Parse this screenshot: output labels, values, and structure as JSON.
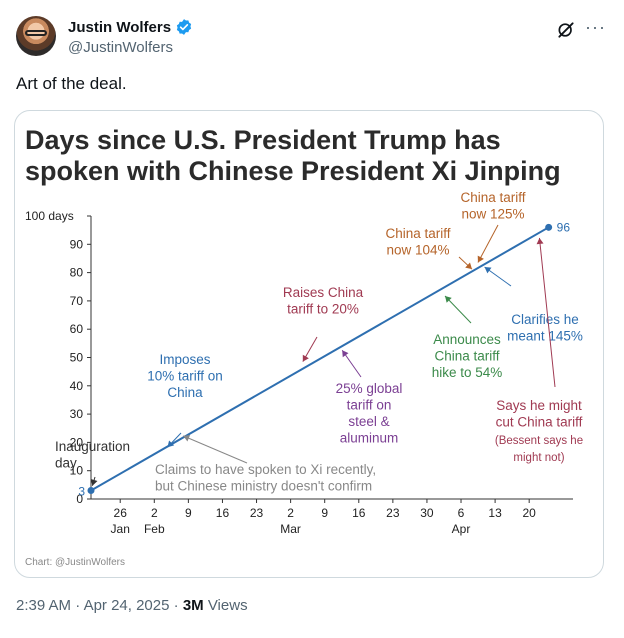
{
  "author": {
    "display_name": "Justin Wolfers",
    "handle": "@JustinWolfers",
    "verified_color": "#1d9bf0"
  },
  "icons": {
    "verified": "verified-badge-icon",
    "grok": "grok-icon",
    "more": "more-options-icon"
  },
  "tweet": {
    "text": "Art of the deal.",
    "time": "2:39 AM",
    "separator": "·",
    "date": "Apr 24, 2025",
    "views_count": "3M",
    "views_label": "Views"
  },
  "chart_data": {
    "type": "line",
    "title_lines": [
      "Days since U.S. President Trump has",
      "spoken with Chinese President Xi Jinping"
    ],
    "credit": "Chart: @JustinWolfers",
    "y_ticks": [
      {
        "value": 100,
        "label": "100 days"
      },
      {
        "value": 90,
        "label": "90"
      },
      {
        "value": 80,
        "label": "80"
      },
      {
        "value": 70,
        "label": "70"
      },
      {
        "value": 60,
        "label": "60"
      },
      {
        "value": 50,
        "label": "50"
      },
      {
        "value": 40,
        "label": "40"
      },
      {
        "value": 30,
        "label": "30"
      },
      {
        "value": 20,
        "label": "20"
      },
      {
        "value": 10,
        "label": "10"
      },
      {
        "value": 0,
        "label": "0"
      }
    ],
    "ylim": [
      0,
      100
    ],
    "xlim": [
      "2025-01-20",
      "2025-04-29"
    ],
    "x_ticks": [
      {
        "date": "2025-01-26",
        "label": "26",
        "month": "Jan"
      },
      {
        "date": "2025-02-02",
        "label": "2",
        "month": "Feb"
      },
      {
        "date": "2025-02-09",
        "label": "9",
        "month": ""
      },
      {
        "date": "2025-02-16",
        "label": "16",
        "month": ""
      },
      {
        "date": "2025-02-23",
        "label": "23",
        "month": ""
      },
      {
        "date": "2025-03-02",
        "label": "2",
        "month": "Mar"
      },
      {
        "date": "2025-03-09",
        "label": "9",
        "month": ""
      },
      {
        "date": "2025-03-16",
        "label": "16",
        "month": ""
      },
      {
        "date": "2025-03-23",
        "label": "23",
        "month": ""
      },
      {
        "date": "2025-03-30",
        "label": "30",
        "month": ""
      },
      {
        "date": "2025-04-06",
        "label": "6",
        "month": "Apr"
      },
      {
        "date": "2025-04-13",
        "label": "13",
        "month": ""
      },
      {
        "date": "2025-04-20",
        "label": "20",
        "month": ""
      }
    ],
    "series": [
      {
        "color": "#2e6fb0",
        "points": [
          {
            "x": "2025-01-20",
            "y": 3,
            "label": "3"
          },
          {
            "x": "2025-04-24",
            "y": 96,
            "label": "96"
          }
        ]
      }
    ],
    "annotations": [
      {
        "lines": [
          "Inauguration",
          "day"
        ],
        "color": "#333333",
        "x": "2025-01-20",
        "y": 3
      },
      {
        "lines": [
          "Imposes",
          "10% tariff on",
          "China"
        ],
        "color": "#2e6fb0",
        "x": "2025-02-04",
        "y": 17
      },
      {
        "lines": [
          "Claims to have spoken to Xi recently,",
          "but Chinese ministry doesn't confirm"
        ],
        "color": "#888888",
        "x": "2025-02-07",
        "y": 23
      },
      {
        "lines": [
          "Raises China",
          "tariff to 20%"
        ],
        "color": "#a03a52",
        "x": "2025-03-04",
        "y": 47
      },
      {
        "lines": [
          "25% global",
          "tariff on",
          "steel &",
          "aluminum"
        ],
        "color": "#7b3f93",
        "x": "2025-03-12",
        "y": 54
      },
      {
        "lines": [
          "Announces",
          "China tariff",
          "hike to 54%"
        ],
        "color": "#3b8a4a",
        "x": "2025-04-02",
        "y": 73
      },
      {
        "lines": [
          "China tariff",
          "now 104%"
        ],
        "color": "#b5642a",
        "x": "2025-04-09",
        "y": 80
      },
      {
        "lines": [
          "China tariff",
          "now 125%"
        ],
        "color": "#b5642a",
        "x": "2025-04-09",
        "y": 82
      },
      {
        "lines": [
          "Clarifies he",
          "meant 145%"
        ],
        "color": "#2e6fb0",
        "x": "2025-04-10",
        "y": 83
      },
      {
        "lines": [
          "Says he might",
          "cut China tariff",
          "(Bessent says he",
          "might not)"
        ],
        "color": "#a03a52",
        "x": "2025-04-22",
        "y": 94
      }
    ]
  }
}
